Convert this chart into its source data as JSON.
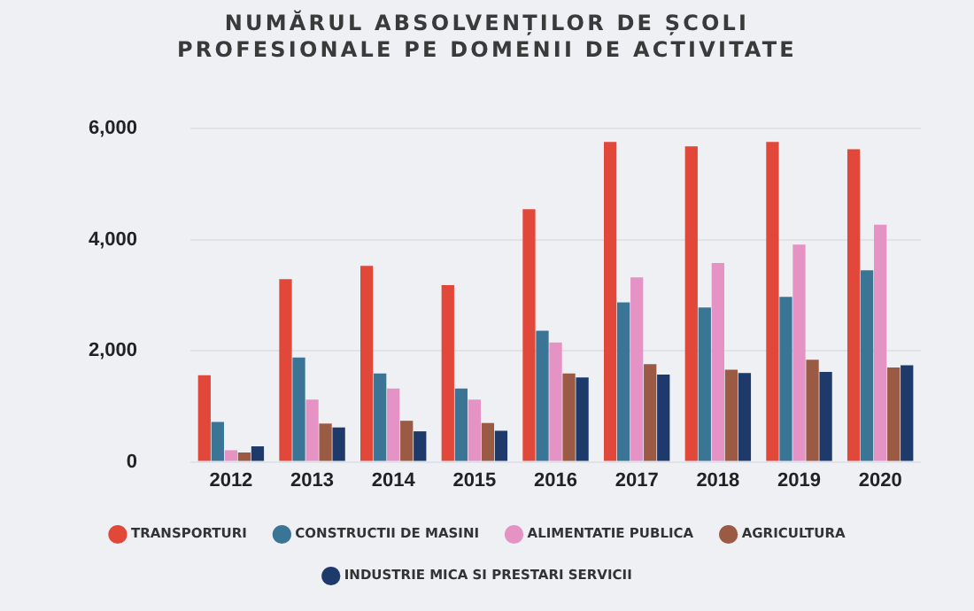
{
  "chart_data": {
    "type": "bar",
    "title": "NUMĂRUL ABSOLVENȚILOR DE ȘCOLI PROFESIONALE PE DOMENII DE ACTIVITATE",
    "categories": [
      "2012",
      "2013",
      "2014",
      "2015",
      "2016",
      "2017",
      "2018",
      "2019",
      "2020"
    ],
    "series": [
      {
        "name": "TRANSPORTURI",
        "color": "#e2483a",
        "values": [
          1560,
          3290,
          3530,
          3180,
          4550,
          5760,
          5680,
          5760,
          5630
        ]
      },
      {
        "name": "CONSTRUCTII DE MASINI",
        "color": "#3a7596",
        "values": [
          720,
          1880,
          1590,
          1320,
          2360,
          2870,
          2780,
          2970,
          3450
        ]
      },
      {
        "name": "ALIMENTATIE PUBLICA",
        "color": "#e592c4",
        "values": [
          210,
          1120,
          1320,
          1120,
          2150,
          3320,
          3580,
          3910,
          4270
        ]
      },
      {
        "name": "AGRICULTURA",
        "color": "#9a5a44",
        "values": [
          170,
          690,
          740,
          700,
          1590,
          1760,
          1660,
          1840,
          1700
        ]
      },
      {
        "name": "INDUSTRIE MICA SI PRESTARI SERVICII",
        "color": "#1d3a6a",
        "values": [
          280,
          620,
          550,
          560,
          1520,
          1570,
          1600,
          1620,
          1740
        ]
      }
    ],
    "ylim": [
      0,
      6000
    ],
    "yticks": [
      {
        "value": 0,
        "label": "0"
      },
      {
        "value": 2000,
        "label": "2,000"
      },
      {
        "value": 4000,
        "label": "4,000"
      },
      {
        "value": 6000,
        "label": "6,000"
      }
    ],
    "grid": "y",
    "legend": "bottom"
  }
}
